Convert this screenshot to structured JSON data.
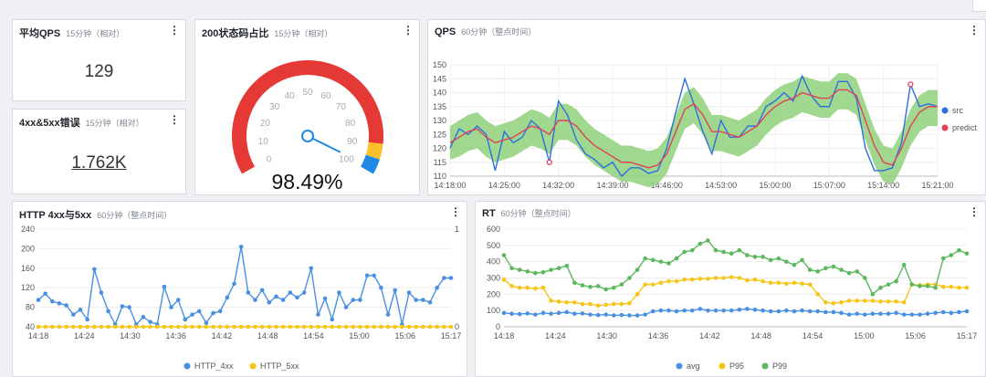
{
  "panels": {
    "avg_qps": {
      "title": "平均QPS",
      "subtitle": "15分钟（相对）",
      "value": "129"
    },
    "errors": {
      "title": "4xx&5xx错误",
      "subtitle": "15分钟（相对）",
      "value": "1.762K"
    },
    "status200": {
      "title": "200状态码占比",
      "subtitle": "15分钟（相对）",
      "value": "98.49%"
    },
    "qps": {
      "title": "QPS",
      "subtitle": "60分钟（整点时间）"
    },
    "http": {
      "title": "HTTP 4xx与5xx",
      "subtitle": "60分钟（整点时间）"
    },
    "rt": {
      "title": "RT",
      "subtitle": "60分钟（整点时间）"
    }
  },
  "menu_glyph": "⋮",
  "gauge": {
    "min": 0,
    "max": 100,
    "value": 98.49,
    "ticks": [
      "0",
      "10",
      "20",
      "30",
      "40",
      "50",
      "60",
      "70",
      "80",
      "90",
      "100"
    ],
    "colors": {
      "red": "#e53935",
      "yellow": "#fbc02d",
      "blue": "#1e88e5",
      "needle": "#1e88e5"
    }
  },
  "chart_data": [
    {
      "id": "qps",
      "type": "line",
      "x_ticks": [
        "14:18:00",
        "14:25:00",
        "14:32:00",
        "14:39:00",
        "14:46:00",
        "14:53:00",
        "15:00:00",
        "15:07:00",
        "15:14:00",
        "15:21:00"
      ],
      "ylim": [
        110,
        150
      ],
      "y_ticks": [
        110,
        115,
        120,
        125,
        130,
        135,
        140,
        145,
        150
      ],
      "x_range": [
        "14:18:00",
        "15:21:00"
      ],
      "series": [
        {
          "name": "src",
          "color": "#2f6fde",
          "values": [
            120,
            127,
            125,
            128,
            125,
            112,
            126,
            122,
            124,
            130,
            127,
            115,
            137,
            132,
            123,
            118,
            116,
            113,
            115,
            110,
            113,
            113,
            111,
            112,
            120,
            133,
            145,
            136,
            126,
            118,
            130,
            124,
            124,
            128,
            128,
            135,
            137,
            140,
            137,
            146,
            139,
            135,
            135,
            144,
            144,
            138,
            120,
            112,
            112,
            113,
            122,
            143,
            135,
            136,
            135
          ]
        },
        {
          "name": "predict",
          "color": "#e0425a",
          "values": [
            122,
            124,
            126,
            127,
            124,
            122,
            123,
            124,
            126,
            128,
            127,
            125,
            130,
            130,
            128,
            124,
            121,
            119,
            117,
            115,
            115,
            114,
            113,
            114,
            118,
            126,
            134,
            136,
            132,
            126,
            126,
            125,
            124,
            126,
            128,
            132,
            135,
            137,
            138,
            140,
            139,
            138,
            138,
            141,
            141,
            139,
            130,
            121,
            115,
            114,
            120,
            128,
            133,
            135,
            135
          ]
        }
      ],
      "band": {
        "color": "#8ed17a",
        "lower": [
          116,
          117,
          119,
          120,
          117,
          115,
          116,
          117,
          119,
          121,
          120,
          118,
          123,
          123,
          121,
          117,
          114,
          112,
          110,
          108,
          108,
          107,
          106,
          107,
          111,
          119,
          127,
          129,
          125,
          119,
          119,
          118,
          117,
          119,
          121,
          125,
          128,
          130,
          131,
          133,
          132,
          131,
          131,
          134,
          134,
          132,
          123,
          114,
          108,
          107,
          113,
          121,
          126,
          128,
          128
        ],
        "upper": [
          128,
          130,
          132,
          133,
          130,
          128,
          129,
          130,
          132,
          134,
          133,
          131,
          136,
          136,
          134,
          130,
          127,
          125,
          123,
          121,
          121,
          120,
          119,
          120,
          124,
          132,
          140,
          142,
          138,
          132,
          132,
          131,
          130,
          132,
          134,
          138,
          141,
          143,
          144,
          146,
          145,
          144,
          144,
          147,
          147,
          145,
          136,
          127,
          121,
          120,
          126,
          134,
          139,
          141,
          141
        ]
      },
      "anomaly": {
        "color": "#e0425a",
        "points": [
          [
            11,
            115
          ],
          [
            51,
            143
          ]
        ]
      },
      "legend": [
        "src",
        "predict"
      ],
      "legend_position": "right"
    },
    {
      "id": "http",
      "type": "line",
      "x_ticks": [
        "14:18",
        "14:24",
        "14:30",
        "14:36",
        "14:42",
        "14:48",
        "14:54",
        "15:00",
        "15:06",
        "15:17"
      ],
      "ylim": [
        40,
        240
      ],
      "y_ticks": [
        40,
        80,
        120,
        160,
        200,
        240
      ],
      "y2lim": [
        0,
        1
      ],
      "y2_ticks": [
        "0",
        "1"
      ],
      "series": [
        {
          "name": "HTTP_4xx",
          "color": "#4a90e2",
          "values": [
            95,
            108,
            92,
            88,
            84,
            65,
            75,
            55,
            158,
            110,
            72,
            45,
            82,
            80,
            45,
            60,
            50,
            45,
            122,
            80,
            95,
            55,
            65,
            72,
            48,
            68,
            72,
            100,
            128,
            204,
            110,
            95,
            115,
            90,
            102,
            95,
            110,
            100,
            110,
            160,
            65,
            98,
            55,
            110,
            80,
            95,
            95,
            145,
            145,
            120,
            65,
            115,
            45,
            110,
            95,
            95,
            90,
            120,
            140,
            140
          ]
        },
        {
          "name": "HTTP_5xx",
          "color": "#f5c518",
          "values": [
            40,
            40,
            40,
            40,
            40,
            40,
            40,
            40,
            40,
            40,
            40,
            40,
            40,
            40,
            40,
            40,
            40,
            40,
            40,
            40,
            40,
            40,
            40,
            40,
            40,
            40,
            40,
            40,
            40,
            40,
            40,
            40,
            40,
            40,
            40,
            40,
            40,
            40,
            40,
            40,
            40,
            40,
            40,
            40,
            40,
            40,
            40,
            40,
            40,
            40,
            40,
            40,
            40,
            40,
            40,
            40,
            40,
            40,
            40,
            40
          ]
        }
      ],
      "legend": [
        "HTTP_4xx",
        "HTTP_5xx"
      ],
      "legend_position": "bottom"
    },
    {
      "id": "rt",
      "type": "line",
      "x_ticks": [
        "14:18",
        "14:24",
        "14:30",
        "14:36",
        "14:42",
        "14:48",
        "14:54",
        "15:00",
        "15:06",
        "15:17"
      ],
      "ylim": [
        0,
        600
      ],
      "y_ticks": [
        0,
        100,
        200,
        300,
        400,
        500,
        600
      ],
      "series": [
        {
          "name": "avg",
          "color": "#4a90e2",
          "values": [
            85,
            80,
            78,
            82,
            75,
            85,
            80,
            85,
            90,
            80,
            82,
            75,
            72,
            75,
            70,
            72,
            70,
            70,
            75,
            95,
            100,
            100,
            95,
            100,
            100,
            110,
            100,
            100,
            100,
            100,
            105,
            110,
            105,
            100,
            95,
            95,
            100,
            95,
            100,
            95,
            95,
            90,
            90,
            85,
            75,
            80,
            75,
            80,
            80,
            80,
            85,
            75,
            75,
            75,
            80,
            85,
            90,
            85,
            90,
            95
          ]
        },
        {
          "name": "P95",
          "color": "#f5c518",
          "values": [
            290,
            250,
            240,
            240,
            235,
            240,
            160,
            155,
            150,
            150,
            140,
            140,
            130,
            135,
            140,
            140,
            145,
            200,
            260,
            260,
            270,
            280,
            280,
            290,
            290,
            295,
            295,
            300,
            300,
            305,
            300,
            285,
            290,
            280,
            270,
            270,
            265,
            270,
            265,
            260,
            200,
            150,
            145,
            150,
            160,
            160,
            160,
            160,
            155,
            155,
            155,
            150,
            260,
            255,
            260,
            260,
            245,
            245,
            240,
            240
          ]
        },
        {
          "name": "P99",
          "color": "#5cb85c",
          "values": [
            440,
            360,
            350,
            340,
            330,
            335,
            350,
            360,
            375,
            270,
            255,
            245,
            250,
            230,
            240,
            260,
            300,
            350,
            420,
            410,
            400,
            390,
            420,
            460,
            470,
            510,
            530,
            470,
            460,
            450,
            470,
            440,
            430,
            430,
            410,
            420,
            400,
            380,
            410,
            350,
            340,
            360,
            370,
            350,
            330,
            340,
            300,
            200,
            240,
            260,
            280,
            380,
            260,
            250,
            250,
            240,
            420,
            440,
            470,
            450
          ]
        }
      ],
      "legend": [
        "avg",
        "P95",
        "P99"
      ],
      "legend_position": "bottom"
    }
  ]
}
